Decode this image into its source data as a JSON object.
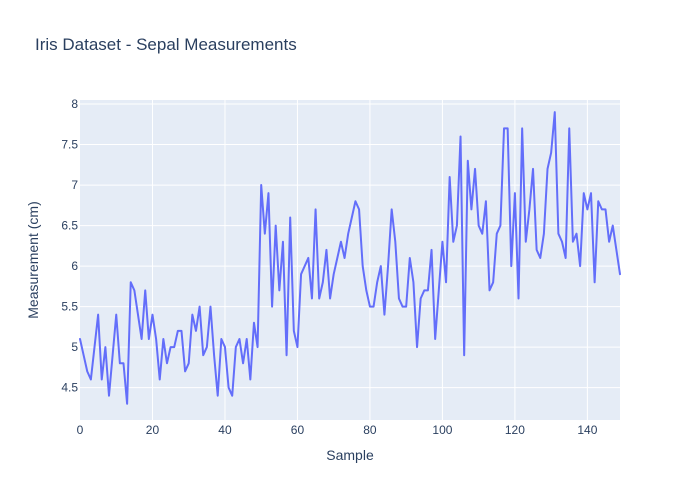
{
  "chart_data": {
    "type": "line",
    "title": "Iris Dataset - Sepal Measurements",
    "xlabel": "Sample",
    "ylabel": "Measurement (cm)",
    "xlim": [
      0,
      149
    ],
    "ylim": [
      4.1,
      8.05
    ],
    "x_ticks": [
      0,
      20,
      40,
      60,
      80,
      100,
      120,
      140
    ],
    "x_tick_labels": [
      "0",
      "20",
      "40",
      "60",
      "80",
      "100",
      "120",
      "140"
    ],
    "y_ticks": [
      4.5,
      5,
      5.5,
      6,
      6.5,
      7,
      7.5,
      8
    ],
    "y_tick_labels": [
      "4.5",
      "5",
      "5.5",
      "6",
      "6.5",
      "7",
      "7.5",
      "8"
    ],
    "grid": true,
    "legend": "none",
    "colors": {
      "line": "#636efa",
      "plot_bg": "#e5ecf6",
      "grid": "#ffffff",
      "text": "#2a3f5f"
    },
    "series": [
      {
        "values": [
          5.1,
          4.9,
          4.7,
          4.6,
          5.0,
          5.4,
          4.6,
          5.0,
          4.4,
          4.9,
          5.4,
          4.8,
          4.8,
          4.3,
          5.8,
          5.7,
          5.4,
          5.1,
          5.7,
          5.1,
          5.4,
          5.1,
          4.6,
          5.1,
          4.8,
          5.0,
          5.0,
          5.2,
          5.2,
          4.7,
          4.8,
          5.4,
          5.2,
          5.5,
          4.9,
          5.0,
          5.5,
          4.9,
          4.4,
          5.1,
          5.0,
          4.5,
          4.4,
          5.0,
          5.1,
          4.8,
          5.1,
          4.6,
          5.3,
          5.0,
          7.0,
          6.4,
          6.9,
          5.5,
          6.5,
          5.7,
          6.3,
          4.9,
          6.6,
          5.2,
          5.0,
          5.9,
          6.0,
          6.1,
          5.6,
          6.7,
          5.6,
          5.8,
          6.2,
          5.6,
          5.9,
          6.1,
          6.3,
          6.1,
          6.4,
          6.6,
          6.8,
          6.7,
          6.0,
          5.7,
          5.5,
          5.5,
          5.8,
          6.0,
          5.4,
          6.0,
          6.7,
          6.3,
          5.6,
          5.5,
          5.5,
          6.1,
          5.8,
          5.0,
          5.6,
          5.7,
          5.7,
          6.2,
          5.1,
          5.7,
          6.3,
          5.8,
          7.1,
          6.3,
          6.5,
          7.6,
          4.9,
          7.3,
          6.7,
          7.2,
          6.5,
          6.4,
          6.8,
          5.7,
          5.8,
          6.4,
          6.5,
          7.7,
          7.7,
          6.0,
          6.9,
          5.6,
          7.7,
          6.3,
          6.7,
          7.2,
          6.2,
          6.1,
          6.4,
          7.2,
          7.4,
          7.9,
          6.4,
          6.3,
          6.1,
          7.7,
          6.3,
          6.4,
          6.0,
          6.9,
          6.7,
          6.9,
          5.8,
          6.8,
          6.7,
          6.7,
          6.3,
          6.5,
          6.2,
          5.9
        ]
      }
    ]
  }
}
